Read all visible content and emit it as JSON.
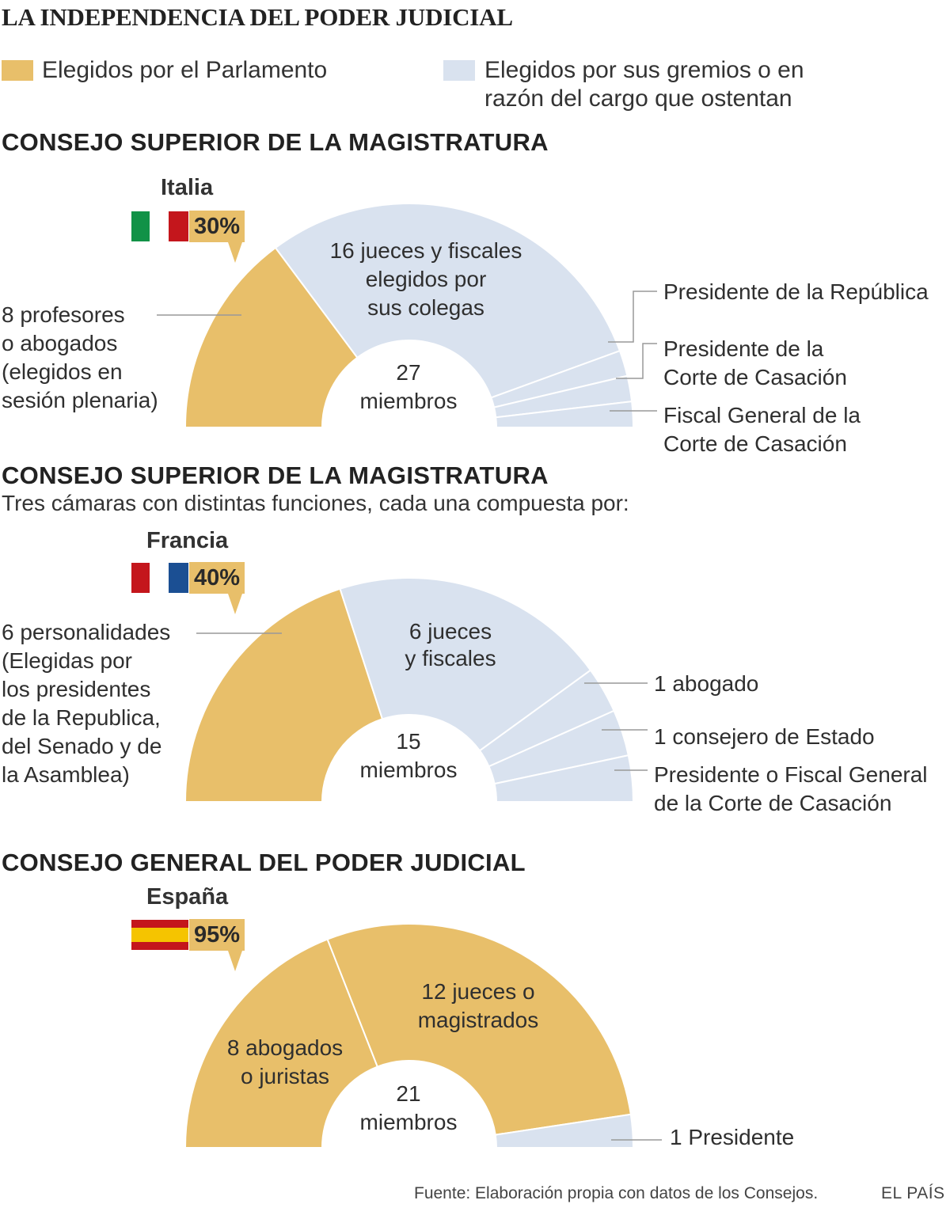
{
  "title": "LA INDEPENDENCIA DEL PODER JUDICIAL",
  "legend": {
    "parliament": {
      "label": "Elegidos por el Parlamento",
      "color": "#e8bf6a"
    },
    "guild": {
      "label_line1": "Elegidos por sus gremios o en",
      "label_line2": "razón del cargo que ostentan",
      "color": "#d9e2ef"
    }
  },
  "sections": [
    {
      "title": "CONSEJO SUPERIOR DE LA MAGISTRATURA",
      "country": "Italia",
      "pct": "30%"
    },
    {
      "title": "CONSEJO SUPERIOR DE LA MAGISTRATURA",
      "subtitle": "Tres cámaras con distintas funciones, cada una compuesta por:",
      "country": "Francia",
      "pct": "40%"
    },
    {
      "title": "CONSEJO GENERAL DEL PODER JUDICIAL",
      "country": "España",
      "pct": "95%"
    }
  ],
  "chart_data": [
    {
      "type": "pie",
      "subtype": "half-donut",
      "country": "Italia",
      "center_label": [
        "27",
        "miembros"
      ],
      "parliament_share": "30%",
      "slices": [
        {
          "label": "8 profesores o abogados (elegidos en sesión plenaria)",
          "label_lines": [
            "8 profesores",
            "o abogados",
            "(elegidos en",
            "sesión plenaria)"
          ],
          "value": 8,
          "group": "parliament"
        },
        {
          "label": "16 jueces y fiscales elegidos por sus colegas",
          "label_lines": [
            "16 jueces y fiscales",
            "elegidos por",
            "sus colegas"
          ],
          "value": 16,
          "group": "guild"
        },
        {
          "label": "Presidente de la República",
          "label_lines": [
            "Presidente de la República"
          ],
          "value": 1,
          "group": "guild"
        },
        {
          "label": "Presidente de la Corte de Casación",
          "label_lines": [
            "Presidente de la",
            "Corte de Casación"
          ],
          "value": 1,
          "group": "guild"
        },
        {
          "label": "Fiscal General de la Corte de Casación",
          "label_lines": [
            "Fiscal General de la",
            "Corte de Casación"
          ],
          "value": 1,
          "group": "guild"
        }
      ]
    },
    {
      "type": "pie",
      "subtype": "half-donut",
      "country": "Francia",
      "center_label": [
        "15",
        "miembros"
      ],
      "parliament_share": "40%",
      "slices": [
        {
          "label": "6 personalidades (Elegidas por los presidentes de la Republica, del Senado y de la Asamblea)",
          "label_lines": [
            "6 personalidades",
            "(Elegidas por",
            "los presidentes",
            "de la Republica,",
            "del Senado y de",
            "la Asamblea)"
          ],
          "value": 6,
          "group": "parliament"
        },
        {
          "label": "6 jueces y fiscales",
          "label_lines": [
            "6 jueces",
            "y fiscales"
          ],
          "value": 6,
          "group": "guild"
        },
        {
          "label": "1 abogado",
          "label_lines": [
            "1 abogado"
          ],
          "value": 1,
          "group": "guild"
        },
        {
          "label": "1 consejero de Estado",
          "label_lines": [
            "1 consejero de Estado"
          ],
          "value": 1,
          "group": "guild"
        },
        {
          "label": "Presidente o Fiscal General de la Corte de Casación",
          "label_lines": [
            "Presidente o Fiscal General",
            "de la Corte de Casación"
          ],
          "value": 1,
          "group": "guild"
        }
      ]
    },
    {
      "type": "pie",
      "subtype": "half-donut",
      "country": "España",
      "center_label": [
        "21",
        "miembros"
      ],
      "parliament_share": "95%",
      "slices": [
        {
          "label": "8 abogados o juristas",
          "label_lines": [
            "8 abogados",
            "o juristas"
          ],
          "value": 8,
          "group": "parliament"
        },
        {
          "label": "12 jueces o magistrados",
          "label_lines": [
            "12 jueces o",
            "magistrados"
          ],
          "value": 12,
          "group": "parliament"
        },
        {
          "label": "1 Presidente",
          "label_lines": [
            "1 Presidente"
          ],
          "value": 1,
          "group": "guild"
        }
      ]
    }
  ],
  "footer": {
    "source": "Fuente: Elaboración propia con datos de los Consejos.",
    "brand": "EL PAÍS"
  }
}
